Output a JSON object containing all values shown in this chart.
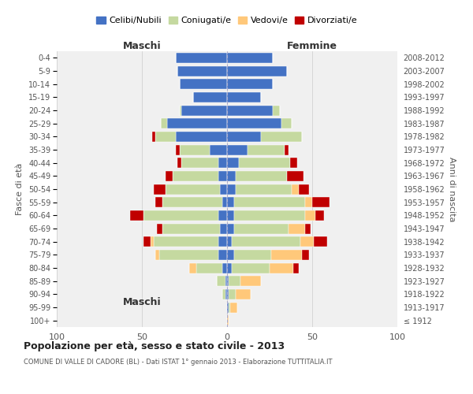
{
  "age_groups": [
    "100+",
    "95-99",
    "90-94",
    "85-89",
    "80-84",
    "75-79",
    "70-74",
    "65-69",
    "60-64",
    "55-59",
    "50-54",
    "45-49",
    "40-44",
    "35-39",
    "30-34",
    "25-29",
    "20-24",
    "15-19",
    "10-14",
    "5-9",
    "0-4"
  ],
  "birth_years": [
    "≤ 1912",
    "1913-1917",
    "1918-1922",
    "1923-1927",
    "1928-1932",
    "1933-1937",
    "1938-1942",
    "1943-1947",
    "1948-1952",
    "1953-1957",
    "1958-1962",
    "1963-1967",
    "1968-1972",
    "1973-1977",
    "1978-1982",
    "1983-1987",
    "1988-1992",
    "1993-1997",
    "1998-2002",
    "2003-2007",
    "2008-2012"
  ],
  "colors": {
    "celibe": "#4472c4",
    "coniugato": "#c5d9a0",
    "vedovo": "#ffc87a",
    "divorziato": "#c00000"
  },
  "maschi": {
    "celibe": [
      0,
      0,
      1,
      1,
      3,
      5,
      5,
      4,
      5,
      3,
      4,
      5,
      5,
      10,
      30,
      35,
      27,
      20,
      28,
      29,
      30
    ],
    "coniugato": [
      0,
      0,
      2,
      5,
      15,
      35,
      38,
      34,
      44,
      35,
      32,
      27,
      22,
      18,
      12,
      4,
      1,
      0,
      0,
      0,
      0
    ],
    "vedovo": [
      0,
      0,
      0,
      0,
      4,
      2,
      2,
      0,
      0,
      0,
      0,
      0,
      0,
      0,
      0,
      0,
      0,
      0,
      0,
      0,
      0
    ],
    "divorziato": [
      0,
      0,
      0,
      0,
      0,
      0,
      4,
      3,
      8,
      4,
      7,
      4,
      2,
      2,
      2,
      0,
      0,
      0,
      0,
      0,
      0
    ]
  },
  "femmine": {
    "nubile": [
      0,
      1,
      1,
      1,
      3,
      4,
      3,
      4,
      4,
      4,
      5,
      5,
      7,
      12,
      20,
      32,
      27,
      20,
      27,
      35,
      27
    ],
    "coniugata": [
      0,
      1,
      4,
      7,
      22,
      22,
      40,
      32,
      42,
      42,
      33,
      30,
      30,
      22,
      24,
      6,
      4,
      0,
      0,
      0,
      0
    ],
    "vedova": [
      1,
      4,
      9,
      12,
      14,
      18,
      8,
      10,
      6,
      4,
      4,
      0,
      0,
      0,
      0,
      0,
      0,
      0,
      0,
      0,
      0
    ],
    "divorziata": [
      0,
      0,
      0,
      0,
      3,
      4,
      8,
      3,
      5,
      10,
      6,
      10,
      4,
      2,
      0,
      0,
      0,
      0,
      0,
      0,
      0
    ]
  },
  "xlim": 100,
  "title": "Popolazione per età, sesso e stato civile - 2013",
  "subtitle": "COMUNE DI VALLE DI CADORE (BL) - Dati ISTAT 1° gennaio 2013 - Elaborazione TUTTITALIA.IT",
  "legend_labels": [
    "Celibi/Nubili",
    "Coniugati/e",
    "Vedovi/e",
    "Divorziati/e"
  ],
  "xlabel_left": "Maschi",
  "xlabel_right": "Femmine",
  "ylabel_left": "Fasce di età",
  "ylabel_right": "Anni di nascita",
  "background_color": "#f0f0f0"
}
